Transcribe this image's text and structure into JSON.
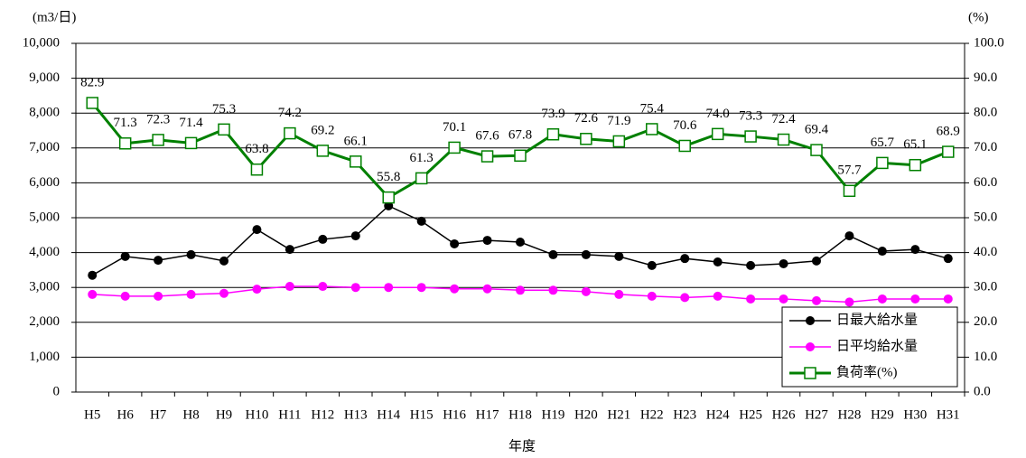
{
  "chart_data": {
    "type": "line",
    "y_label": "(m3/日)",
    "y2_label": "(%)",
    "x_label": "年度",
    "categories": [
      "H5",
      "H6",
      "H7",
      "H8",
      "H9",
      "H10",
      "H11",
      "H12",
      "H13",
      "H14",
      "H15",
      "H16",
      "H17",
      "H18",
      "H19",
      "H20",
      "H21",
      "H22",
      "H23",
      "H24",
      "H25",
      "H26",
      "H27",
      "H28",
      "H29",
      "H30",
      "H31"
    ],
    "series": [
      {
        "name": "日最大給水量",
        "color": "#000000",
        "marker": "circle",
        "values": [
          3350,
          3890,
          3780,
          3940,
          3760,
          4660,
          4090,
          4380,
          4480,
          5340,
          4900,
          4250,
          4350,
          4300,
          3940,
          3940,
          3890,
          3630,
          3830,
          3730,
          3630,
          3680,
          3760,
          4480,
          4040,
          4090,
          3830
        ]
      },
      {
        "name": "日平均給水量",
        "color": "#ff00ff",
        "marker": "circle",
        "values": [
          2800,
          2750,
          2750,
          2800,
          2830,
          2950,
          3030,
          3030,
          3000,
          3000,
          3000,
          2960,
          2960,
          2920,
          2920,
          2880,
          2800,
          2750,
          2710,
          2750,
          2670,
          2670,
          2620,
          2580,
          2670,
          2670,
          2670
        ]
      },
      {
        "name": "負荷率(%)",
        "color": "#008000",
        "marker": "square",
        "axis": "y2",
        "values": [
          82.9,
          71.3,
          72.3,
          71.4,
          75.3,
          63.8,
          74.2,
          69.2,
          66.1,
          55.8,
          61.3,
          70.1,
          67.6,
          67.8,
          73.9,
          72.6,
          71.9,
          75.4,
          70.6,
          74.0,
          73.3,
          72.4,
          69.4,
          57.7,
          65.7,
          65.1,
          68.9
        ],
        "value_labels": [
          "82.9",
          "71.3",
          "72.3",
          "71.4",
          "75.3",
          "63.8",
          "74.2",
          "69.2",
          "66.1",
          "55.8",
          "61.3",
          "70.1",
          "67.6",
          "67.8",
          "73.9",
          "72.6",
          "71.9",
          "75.4",
          "70.6",
          "74.0",
          "73.3",
          "72.4",
          "69.4",
          "57.7",
          "65.7",
          "65.1",
          "68.9"
        ]
      }
    ],
    "ylim": [
      0,
      10000
    ],
    "yticks": [
      {
        "value": 0,
        "label": "0"
      },
      {
        "value": 1000,
        "label": "1,000"
      },
      {
        "value": 2000,
        "label": "2,000"
      },
      {
        "value": 3000,
        "label": "3,000"
      },
      {
        "value": 4000,
        "label": "4,000"
      },
      {
        "value": 5000,
        "label": "5,000"
      },
      {
        "value": 6000,
        "label": "6,000"
      },
      {
        "value": 7000,
        "label": "7,000"
      },
      {
        "value": 8000,
        "label": "8,000"
      },
      {
        "value": 9000,
        "label": "9,000"
      },
      {
        "value": 10000,
        "label": "10,000"
      }
    ],
    "y2lim": [
      0,
      100
    ],
    "y2ticks": [
      {
        "value": 0,
        "label": "0.0"
      },
      {
        "value": 10,
        "label": "10.0"
      },
      {
        "value": 20,
        "label": "20.0"
      },
      {
        "value": 30,
        "label": "30.0"
      },
      {
        "value": 40,
        "label": "40.0"
      },
      {
        "value": 50,
        "label": "50.0"
      },
      {
        "value": 60,
        "label": "60.0"
      },
      {
        "value": 70,
        "label": "70.0"
      },
      {
        "value": 80,
        "label": "80.0"
      },
      {
        "value": 90,
        "label": "90.0"
      },
      {
        "value": 100,
        "label": "100.0"
      }
    ],
    "grid": true,
    "legend": "lower right"
  }
}
